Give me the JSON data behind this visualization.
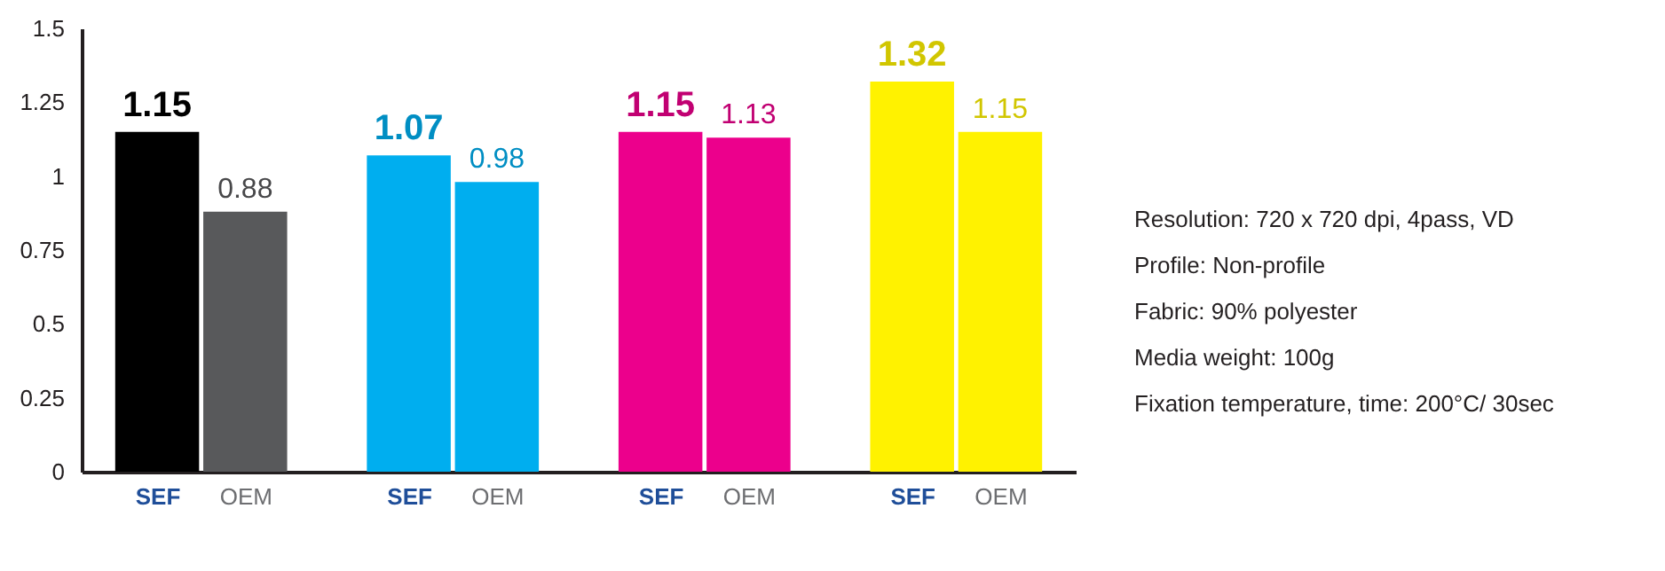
{
  "chart_data": {
    "type": "bar",
    "categories": [
      "SEF",
      "OEM",
      "SEF",
      "OEM",
      "SEF",
      "OEM",
      "SEF",
      "OEM"
    ],
    "values": [
      1.15,
      0.88,
      1.07,
      0.98,
      1.15,
      1.13,
      1.32,
      1.15
    ],
    "colors": [
      "#000000",
      "#58595b",
      "#00aeef",
      "#00aeef",
      "#ec008c",
      "#ec008c",
      "#fff200",
      "#fff200"
    ],
    "value_labels": [
      "1.15",
      "0.88",
      "1.07",
      "0.98",
      "1.15",
      "1.13",
      "1.32",
      "1.15"
    ],
    "ylim": [
      0,
      1.5
    ],
    "yticks": [
      0,
      0.25,
      0.5,
      0.75,
      1,
      1.25,
      1.5
    ],
    "grid": false,
    "annotations": [
      "Resolution: 720 x 720 dpi, 4pass, VD",
      "Profile: Non-profile",
      "Fabric: 90% polyester",
      "Media weight: 100g",
      "Fixation temperature, time: 200°C/ 30sec"
    ]
  }
}
